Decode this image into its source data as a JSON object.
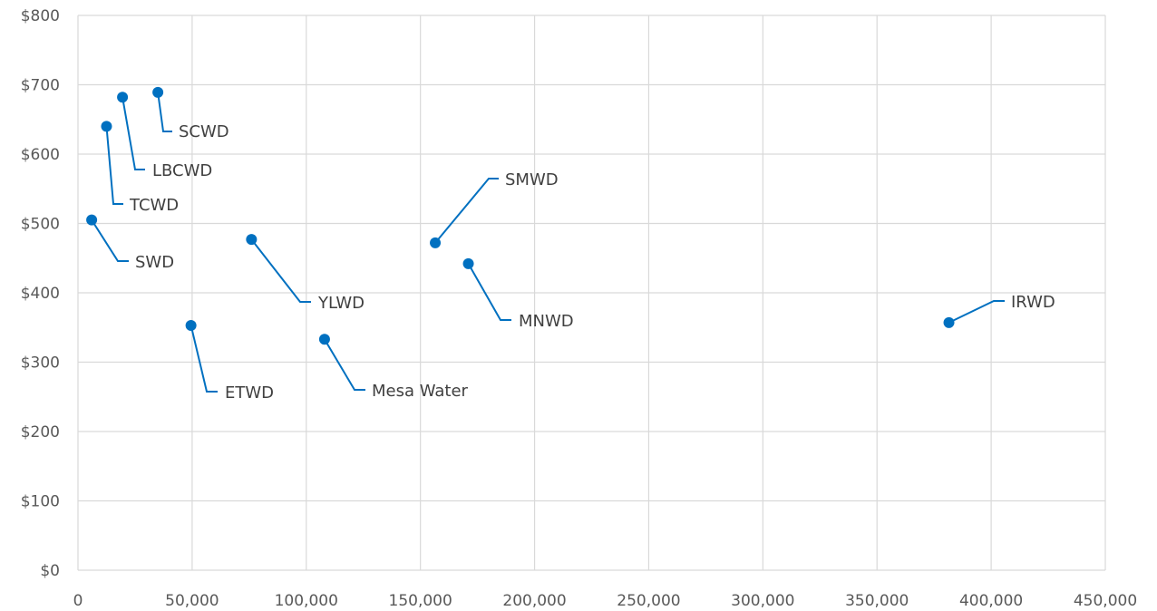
{
  "chart_data": {
    "type": "scatter",
    "title": "",
    "xlabel": "",
    "ylabel": "",
    "xlim": [
      0,
      450000
    ],
    "ylim": [
      0,
      800
    ],
    "x_ticks": [
      0,
      50000,
      100000,
      150000,
      200000,
      250000,
      300000,
      350000,
      400000,
      450000
    ],
    "x_tick_labels": [
      "0",
      "50,000",
      "100,000",
      "150,000",
      "200,000",
      "250,000",
      "300,000",
      "350,000",
      "400,000",
      "450,000"
    ],
    "y_ticks": [
      0,
      100,
      200,
      300,
      400,
      500,
      600,
      700,
      800
    ],
    "y_tick_labels": [
      "$0",
      "$100",
      "$200",
      "$300",
      "$400",
      "$500",
      "$600",
      "$700",
      "$800"
    ],
    "grid": true,
    "legend": "none",
    "series_color": "#0070C0",
    "grid_color": "#D9D9D9",
    "points": [
      {
        "label": "SCWD",
        "x": 35000,
        "y": 689
      },
      {
        "label": "LBCWD",
        "x": 19500,
        "y": 682
      },
      {
        "label": "TCWD",
        "x": 12500,
        "y": 640
      },
      {
        "label": "SWD",
        "x": 6000,
        "y": 505
      },
      {
        "label": "YLWD",
        "x": 76000,
        "y": 477
      },
      {
        "label": "ETWD",
        "x": 49500,
        "y": 353
      },
      {
        "label": "Mesa Water",
        "x": 108000,
        "y": 333
      },
      {
        "label": "SMWD",
        "x": 156500,
        "y": 472
      },
      {
        "label": "MNWD",
        "x": 171000,
        "y": 442
      },
      {
        "label": "IRWD",
        "x": 381500,
        "y": 357
      }
    ]
  }
}
